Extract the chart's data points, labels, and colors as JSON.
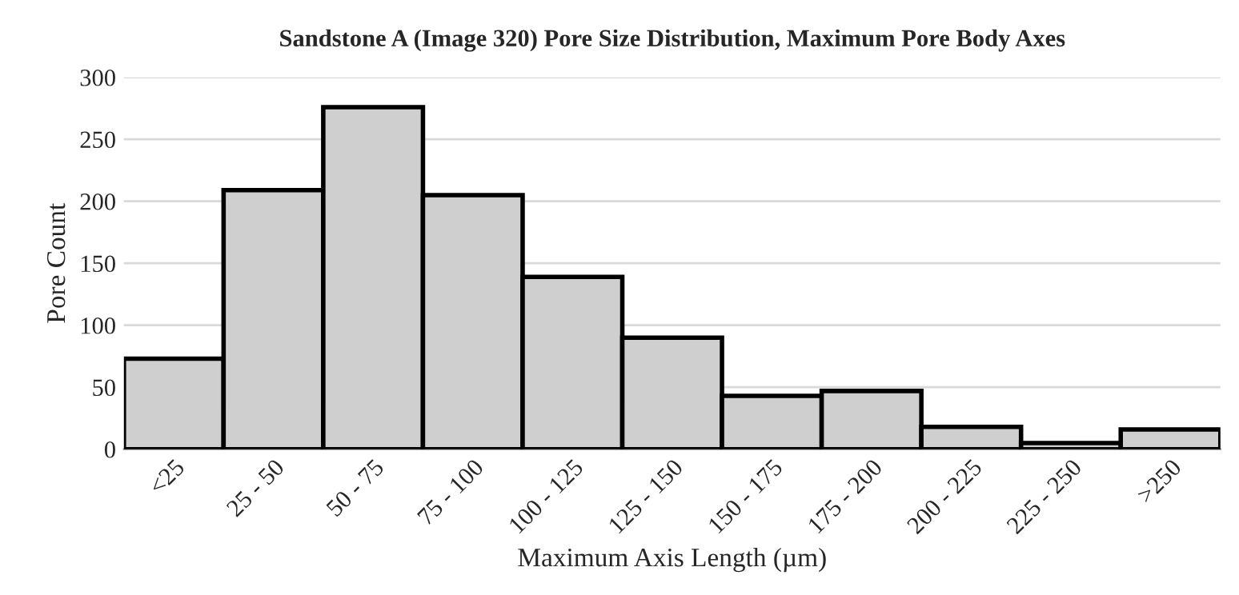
{
  "chart_data": {
    "type": "bar",
    "title": "Sandstone A (Image 320) Pore Size Distribution, Maximum Pore Body Axes",
    "xlabel": "Maximum Axis Length (µm)",
    "ylabel": "Pore Count",
    "categories": [
      "<25",
      "25 - 50",
      "50 - 75",
      "75 - 100",
      "100 - 125",
      "125 - 150",
      "150 - 175",
      "175 - 200",
      "200 - 225",
      "225 - 250",
      ">250"
    ],
    "values": [
      73,
      209,
      276,
      205,
      139,
      90,
      43,
      47,
      18,
      5,
      16
    ],
    "color": "#d0cfd0",
    "ylim": [
      0,
      300
    ],
    "yticks": [
      0,
      50,
      100,
      150,
      200,
      250,
      300
    ],
    "grid": "y"
  }
}
